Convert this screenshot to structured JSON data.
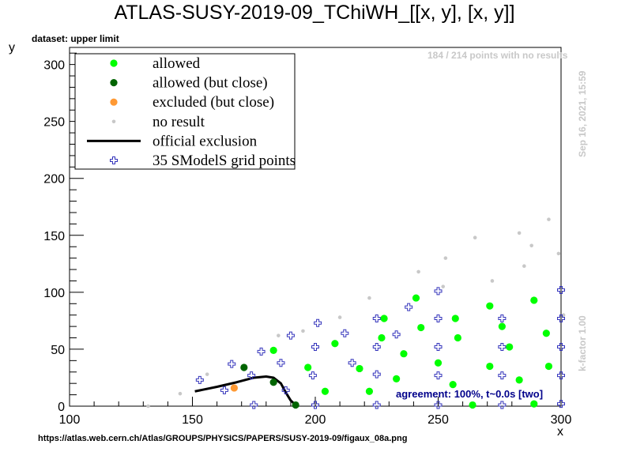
{
  "title": "ATLAS-SUSY-2019-09_TChiWH_[[x, y], [x, y]]",
  "dataset_label": "dataset: upper limit",
  "points_no_result": "184 / 214 points with no results",
  "date_label": "Sep 16, 2021, 15:59",
  "kfactor_label": "k-factor 1.00",
  "agreement_label": "agreement: 100%, t~0.0s [two]",
  "source_url": "https://atlas.web.cern.ch/Atlas/GROUPS/PHYSICS/PAPERS/SUSY-2019-09/figaux_08a.png",
  "colors": {
    "allowed": "#00ff00",
    "allowed_close": "#006400",
    "excluded_close": "#ff9933",
    "no_result": "#c8c8c8",
    "official": "#000000",
    "grid_points": "#3333bb",
    "agreement_text": "#00008b"
  },
  "chart_data": {
    "type": "scatter",
    "xlabel": "x",
    "ylabel": "y",
    "xlim": [
      100,
      300
    ],
    "ylim": [
      0,
      315
    ],
    "xticks": [
      100,
      150,
      200,
      250,
      300
    ],
    "yticks": [
      0,
      50,
      100,
      150,
      200,
      250,
      300
    ],
    "grid": false,
    "legend_position": "top-left",
    "legend": [
      {
        "key": "allowed",
        "label": "allowed"
      },
      {
        "key": "allowed_close",
        "label": "allowed (but close)"
      },
      {
        "key": "excluded_close",
        "label": "excluded (but close)"
      },
      {
        "key": "no_result",
        "label": "no result"
      },
      {
        "key": "official",
        "label": "official exclusion"
      },
      {
        "key": "grid_points",
        "label": "35 SModelS grid points"
      }
    ],
    "series": [
      {
        "key": "no_result",
        "points": [
          [
            132,
            0
          ],
          [
            145,
            11
          ],
          [
            156,
            28
          ],
          [
            185,
            62
          ],
          [
            195,
            66
          ],
          [
            210,
            78
          ],
          [
            222,
            95
          ],
          [
            242,
            118
          ],
          [
            252,
            105
          ],
          [
            253,
            130
          ],
          [
            265,
            148
          ],
          [
            272,
            110
          ],
          [
            283,
            152
          ],
          [
            285,
            123
          ],
          [
            288,
            141
          ],
          [
            295,
            164
          ],
          [
            299,
            134
          ],
          [
            301,
            80
          ]
        ]
      },
      {
        "key": "allowed",
        "points": [
          [
            183,
            49
          ],
          [
            197,
            34
          ],
          [
            204,
            13
          ],
          [
            208,
            55
          ],
          [
            218,
            33
          ],
          [
            222,
            13
          ],
          [
            227,
            60
          ],
          [
            228,
            77
          ],
          [
            233,
            24
          ],
          [
            236,
            46
          ],
          [
            241,
            95
          ],
          [
            243,
            69
          ],
          [
            250,
            38
          ],
          [
            256,
            19
          ],
          [
            257,
            77
          ],
          [
            258,
            60
          ],
          [
            264,
            1
          ],
          [
            271,
            88
          ],
          [
            271,
            35
          ],
          [
            276,
            70
          ],
          [
            279,
            52
          ],
          [
            283,
            23
          ],
          [
            289,
            93
          ],
          [
            289,
            2
          ],
          [
            294,
            64
          ],
          [
            295,
            35
          ]
        ]
      },
      {
        "key": "allowed_close",
        "points": [
          [
            171,
            34
          ],
          [
            183,
            21
          ],
          [
            192,
            1
          ]
        ]
      },
      {
        "key": "excluded_close",
        "points": [
          [
            167,
            16
          ]
        ]
      },
      {
        "key": "grid_points",
        "points": [
          [
            153,
            23
          ],
          [
            163,
            14
          ],
          [
            166,
            37
          ],
          [
            174,
            27
          ],
          [
            175,
            1
          ],
          [
            178,
            48
          ],
          [
            186,
            38
          ],
          [
            188,
            14
          ],
          [
            190,
            62
          ],
          [
            199,
            27
          ],
          [
            200,
            1
          ],
          [
            200,
            52
          ],
          [
            201,
            73
          ],
          [
            215,
            38
          ],
          [
            225,
            77
          ],
          [
            225,
            52
          ],
          [
            225,
            28
          ],
          [
            225,
            1
          ],
          [
            233,
            63
          ],
          [
            250,
            101
          ],
          [
            250,
            77
          ],
          [
            250,
            52
          ],
          [
            250,
            27
          ],
          [
            250,
            1
          ],
          [
            276,
            77
          ],
          [
            276,
            52
          ],
          [
            276,
            27
          ],
          [
            276,
            1
          ],
          [
            300,
            102
          ],
          [
            300,
            77
          ],
          [
            300,
            52
          ],
          [
            300,
            27
          ],
          [
            300,
            2
          ],
          [
            212,
            64
          ],
          [
            238,
            87
          ]
        ]
      }
    ],
    "official_exclusion": [
      [
        151,
        13
      ],
      [
        160,
        17
      ],
      [
        168,
        21
      ],
      [
        175,
        25
      ],
      [
        180,
        26
      ],
      [
        183,
        25
      ],
      [
        186,
        20
      ],
      [
        188,
        12
      ],
      [
        190,
        5
      ],
      [
        192,
        1
      ]
    ]
  }
}
